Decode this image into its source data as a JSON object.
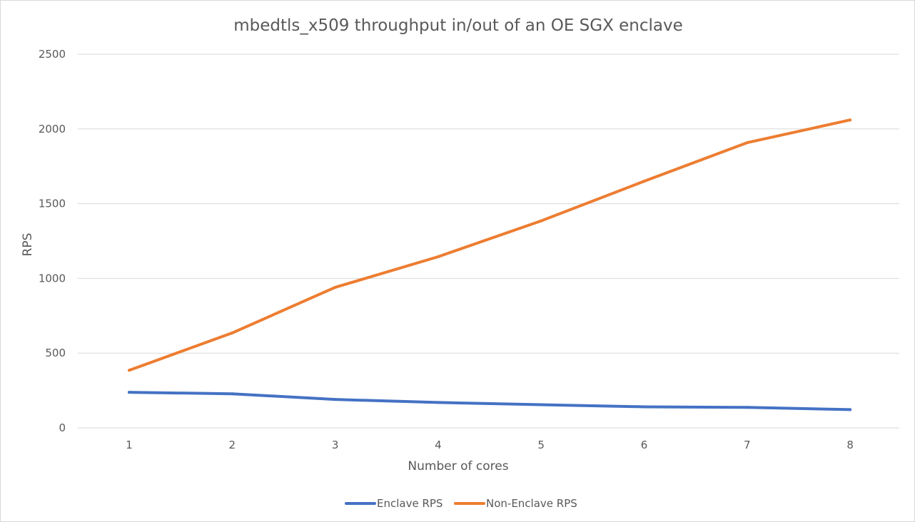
{
  "chart_data": {
    "type": "line",
    "title": "mbedtls_x509 throughput in/out of an OE SGX enclave",
    "xlabel": "Number of cores",
    "ylabel": "RPS",
    "categories": [
      "1",
      "2",
      "3",
      "4",
      "5",
      "6",
      "7",
      "8"
    ],
    "ylim": [
      0,
      2500
    ],
    "yticks": [
      "0",
      "500",
      "1000",
      "1500",
      "2000",
      "2500"
    ],
    "grid": "horizontal",
    "legend": "bottom",
    "series": [
      {
        "name": "Enclave RPS",
        "color": "#4472c4",
        "values": [
          238,
          228,
          190,
          170,
          155,
          141,
          137,
          122
        ]
      },
      {
        "name": "Non-Enclave RPS",
        "color": "#ed7d31",
        "values": [
          385,
          635,
          940,
          1145,
          1385,
          1650,
          1908,
          2060
        ]
      }
    ]
  }
}
